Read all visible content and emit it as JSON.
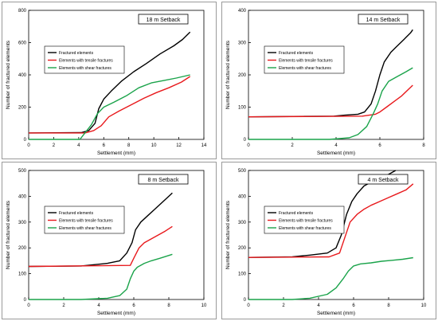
{
  "chart_data": [
    {
      "type": "line",
      "title": "18 m Setback",
      "xlabel": "Settlement (mm)",
      "ylabel": "Number of fractured elements",
      "xlim": [
        0,
        14
      ],
      "ylim": [
        0,
        800
      ],
      "xticks": [
        "0",
        "2",
        "4",
        "6",
        "8",
        "10",
        "12",
        "14"
      ],
      "yticks": [
        "0",
        "200",
        "400",
        "600",
        "800"
      ],
      "legend_position": "left-middle",
      "series": [
        {
          "name": "Fractured elements",
          "color": "#000000",
          "x": [
            0,
            4.2,
            4.8,
            5.3,
            5.6,
            6.0,
            6.6,
            7.4,
            8.4,
            9.4,
            10.5,
            11.6,
            12.3,
            12.9
          ],
          "y": [
            40,
            42,
            55,
            100,
            190,
            250,
            300,
            360,
            420,
            470,
            530,
            580,
            620,
            665
          ]
        },
        {
          "name": "Elements with tensile fractures",
          "color": "#e8191c",
          "x": [
            0,
            4.5,
            5.2,
            5.8,
            6.4,
            7.2,
            8.2,
            9.2,
            10.2,
            11.2,
            12.2,
            12.9
          ],
          "y": [
            40,
            40,
            55,
            85,
            140,
            175,
            215,
            255,
            290,
            320,
            355,
            390
          ]
        },
        {
          "name": "Elements with shear fractures",
          "color": "#1aa34a",
          "x": [
            0,
            4.1,
            4.4,
            5.0,
            5.5,
            6.0,
            6.8,
            7.8,
            8.8,
            9.8,
            10.8,
            11.8,
            12.9
          ],
          "y": [
            0,
            0,
            30,
            90,
            160,
            200,
            230,
            270,
            320,
            350,
            365,
            380,
            400
          ]
        }
      ]
    },
    {
      "type": "line",
      "title": "14 m Setback",
      "xlabel": "Settlement (mm)",
      "ylabel": "Number of fractured elements",
      "xlim": [
        0,
        8
      ],
      "ylim": [
        0,
        400
      ],
      "xticks": [
        "0",
        "2",
        "4",
        "6",
        "8"
      ],
      "yticks": [
        "0",
        "100",
        "200",
        "300",
        "400"
      ],
      "legend_position": "left-middle",
      "series": [
        {
          "name": "Fractured elements",
          "color": "#000000",
          "x": [
            0,
            3.9,
            4.4,
            5.0,
            5.3,
            5.6,
            5.8,
            6.0,
            6.2,
            6.5,
            6.8,
            7.1,
            7.4,
            7.5
          ],
          "y": [
            70,
            72,
            75,
            78,
            85,
            110,
            150,
            200,
            240,
            270,
            290,
            310,
            330,
            340
          ]
        },
        {
          "name": "Elements with tensile fractures",
          "color": "#e8191c",
          "x": [
            0,
            5.2,
            5.8,
            6.0,
            6.3,
            6.6,
            7.0,
            7.3,
            7.5
          ],
          "y": [
            70,
            72,
            78,
            85,
            100,
            115,
            135,
            155,
            168
          ]
        },
        {
          "name": "Elements with shear fractures",
          "color": "#1aa34a",
          "x": [
            0,
            3.7,
            4.6,
            5.0,
            5.4,
            5.7,
            5.9,
            6.1,
            6.4,
            6.8,
            7.2,
            7.5
          ],
          "y": [
            0,
            0,
            5,
            15,
            40,
            80,
            110,
            150,
            180,
            195,
            210,
            222
          ]
        }
      ]
    },
    {
      "type": "line",
      "title": "8 m Setback",
      "xlabel": "Settlement (mm)",
      "ylabel": "Number of fractured elements",
      "xlim": [
        0,
        10
      ],
      "ylim": [
        0,
        500
      ],
      "xticks": [
        "0",
        "2",
        "4",
        "6",
        "8",
        "10"
      ],
      "yticks": [
        "0",
        "100",
        "200",
        "300",
        "400",
        "500"
      ],
      "legend_position": "left-middle",
      "series": [
        {
          "name": "Fractured elements",
          "color": "#000000",
          "x": [
            0,
            3.0,
            4.5,
            5.2,
            5.6,
            5.9,
            6.1,
            6.4,
            6.8,
            7.2,
            7.6,
            8.0,
            8.2
          ],
          "y": [
            128,
            130,
            140,
            150,
            180,
            220,
            270,
            300,
            325,
            350,
            375,
            400,
            413
          ]
        },
        {
          "name": "Elements with tensile fractures",
          "color": "#e8191c",
          "x": [
            0,
            5.8,
            6.0,
            6.3,
            6.6,
            7.0,
            7.4,
            7.8,
            8.2
          ],
          "y": [
            128,
            132,
            160,
            200,
            220,
            235,
            250,
            265,
            283
          ]
        },
        {
          "name": "Elements with shear fractures",
          "color": "#1aa34a",
          "x": [
            0,
            3.0,
            4.5,
            5.2,
            5.6,
            5.8,
            6.0,
            6.2,
            6.6,
            7.0,
            7.5,
            8.2
          ],
          "y": [
            0,
            0,
            5,
            15,
            40,
            80,
            110,
            125,
            140,
            150,
            160,
            175
          ]
        }
      ]
    },
    {
      "type": "line",
      "title": "4 m Setback",
      "xlabel": "Settlement (mm)",
      "ylabel": "Number of fractured elements",
      "xlim": [
        0,
        10
      ],
      "ylim": [
        0,
        500
      ],
      "xticks": [
        "0",
        "2",
        "4",
        "6",
        "8",
        "10"
      ],
      "yticks": [
        "0",
        "100",
        "200",
        "300",
        "400",
        "500"
      ],
      "legend_position": "left-middle",
      "series": [
        {
          "name": "Fractured elements",
          "color": "#000000",
          "x": [
            0,
            2.5,
            3.5,
            4.5,
            5.0,
            5.3,
            5.6,
            5.9,
            6.2,
            6.6,
            7.0,
            7.5,
            8.0,
            8.4
          ],
          "y": [
            163,
            165,
            172,
            180,
            200,
            250,
            330,
            380,
            410,
            440,
            455,
            470,
            485,
            500
          ]
        },
        {
          "name": "Elements with tensile fractures",
          "color": "#e8191c",
          "x": [
            0,
            4.6,
            5.2,
            5.5,
            5.8,
            6.2,
            6.6,
            7.0,
            7.5,
            8.0,
            8.5,
            9.0,
            9.4
          ],
          "y": [
            163,
            165,
            180,
            240,
            300,
            330,
            350,
            365,
            380,
            395,
            410,
            425,
            448
          ]
        },
        {
          "name": "Elements with shear fractures",
          "color": "#1aa34a",
          "x": [
            0,
            2.5,
            3.5,
            4.5,
            5.0,
            5.4,
            5.7,
            6.0,
            6.4,
            7.0,
            7.6,
            8.2,
            8.8,
            9.4
          ],
          "y": [
            0,
            0,
            5,
            20,
            45,
            80,
            110,
            130,
            138,
            142,
            148,
            152,
            156,
            162
          ]
        }
      ]
    }
  ]
}
